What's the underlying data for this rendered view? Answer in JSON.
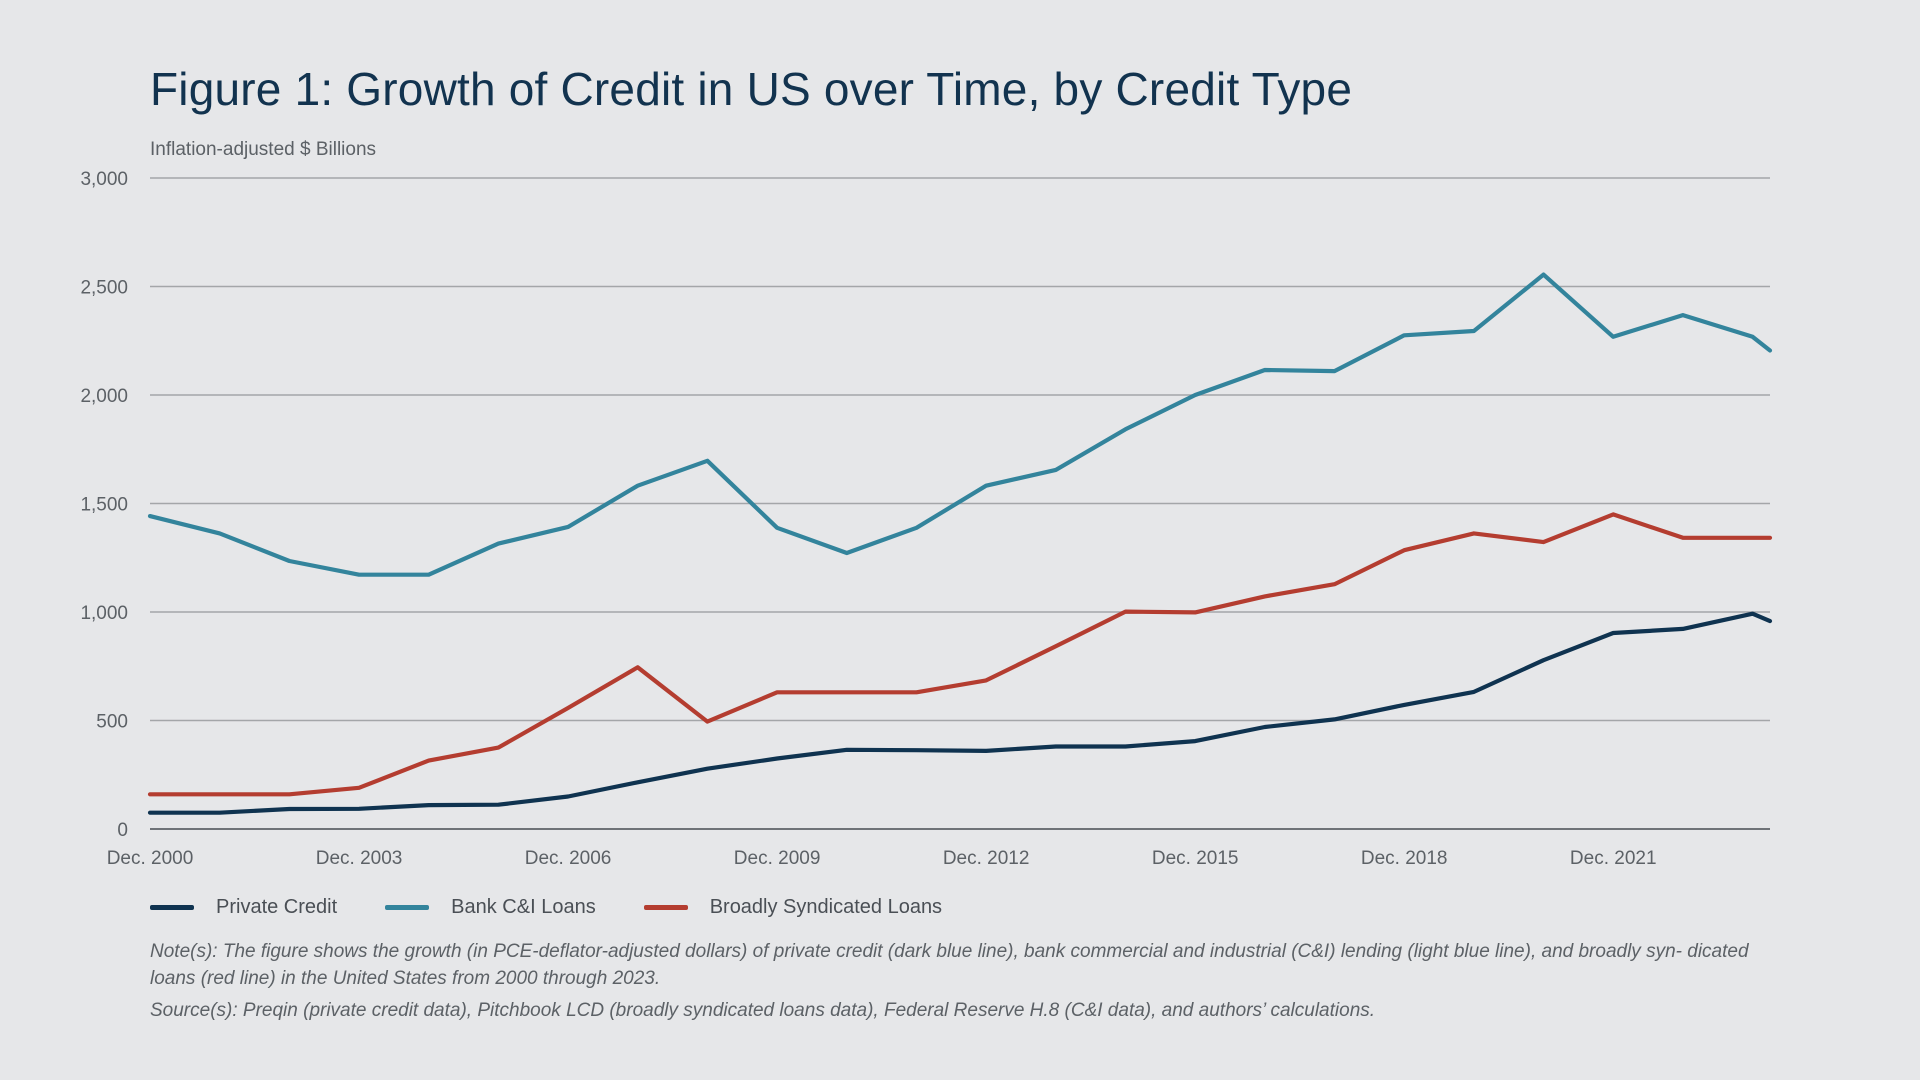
{
  "title": "Figure 1: Growth of Credit in US over Time, by Credit Type",
  "subtitle": "Inflation-adjusted $ Billions",
  "note": "Note(s): The figure shows the growth (in PCE-deflator-adjusted dollars) of private credit (dark blue line), bank commercial and industrial (C&I) lending (light blue line), and broadly syn- dicated loans (red line) in the United States from 2000 through 2023.",
  "source": "Source(s): Preqin (private credit data), Pitchbook LCD (broadly syndicated loans data), Federal Reserve H.8 (C&I data), and authors’ calculations.",
  "colors": {
    "background": "#e6e7e9",
    "grid": "#a4a6a9",
    "axis": "#6f7378",
    "private_credit": "#0f3350",
    "bank_ci": "#33849c",
    "bsl": "#b43d30"
  },
  "chart_data": {
    "type": "line",
    "title": "Figure 1: Growth of Credit in US over Time, by Credit Type",
    "ylabel": "Inflation-adjusted $ Billions",
    "xlabel": "",
    "ylim": [
      0,
      3000
    ],
    "xlim": [
      2000.92,
      2024.17
    ],
    "y_ticks": [
      0,
      500,
      1000,
      1500,
      2000,
      2500,
      3000
    ],
    "y_tick_labels": [
      "0",
      "500",
      "1,000",
      "1,500",
      "2,000",
      "2,500",
      "3,000"
    ],
    "x_ticks": [
      2000.92,
      2003.92,
      2006.92,
      2009.92,
      2012.92,
      2015.92,
      2018.92,
      2021.92
    ],
    "x_tick_labels": [
      "Dec. 2000",
      "Dec. 2003",
      "Dec. 2006",
      "Dec. 2009",
      "Dec. 2012",
      "Dec. 2015",
      "Dec. 2018",
      "Dec. 2021"
    ],
    "grid": true,
    "legend": "bottom",
    "series": [
      {
        "name": "Private Credit",
        "color": "#0f3350",
        "x": [
          2000.92,
          2001.92,
          2002.92,
          2003.92,
          2004.92,
          2005.92,
          2006.92,
          2007.92,
          2008.92,
          2009.92,
          2010.92,
          2011.92,
          2012.92,
          2013.92,
          2014.92,
          2015.92,
          2016.92,
          2017.92,
          2018.92,
          2019.92,
          2020.92,
          2021.92,
          2022.92,
          2023.92,
          2024.17
        ],
        "y": [
          75,
          75,
          92,
          93,
          110,
          112,
          150,
          215,
          278,
          325,
          365,
          363,
          360,
          380,
          380,
          405,
          470,
          505,
          572,
          632,
          778,
          903,
          922,
          992,
          958
        ]
      },
      {
        "name": "Bank C&I Loans",
        "color": "#33849c",
        "x": [
          2000.92,
          2001.92,
          2002.92,
          2003.92,
          2004.92,
          2005.92,
          2006.92,
          2007.92,
          2008.92,
          2009.92,
          2010.92,
          2011.92,
          2012.92,
          2013.92,
          2014.92,
          2015.92,
          2016.92,
          2017.92,
          2018.92,
          2019.92,
          2020.92,
          2021.92,
          2022.92,
          2023.92,
          2024.17
        ],
        "y": [
          1442,
          1362,
          1235,
          1172,
          1172,
          1315,
          1392,
          1582,
          1697,
          1388,
          1272,
          1388,
          1582,
          1655,
          1842,
          2000,
          2115,
          2110,
          2275,
          2295,
          2555,
          2268,
          2368,
          2268,
          2205
        ]
      },
      {
        "name": "Broadly Syndicated Loans",
        "color": "#b43d30",
        "x": [
          2000.92,
          2001.92,
          2002.92,
          2003.92,
          2004.92,
          2005.92,
          2006.92,
          2007.92,
          2008.92,
          2009.92,
          2010.92,
          2011.92,
          2012.92,
          2013.92,
          2014.92,
          2015.92,
          2016.92,
          2017.92,
          2018.92,
          2019.92,
          2020.92,
          2021.92,
          2022.92,
          2023.92,
          2024.17
        ],
        "y": [
          160,
          160,
          160,
          190,
          315,
          375,
          558,
          745,
          495,
          630,
          630,
          630,
          685,
          842,
          1002,
          998,
          1072,
          1128,
          1285,
          1362,
          1322,
          1450,
          1342,
          1342,
          1342
        ]
      }
    ]
  }
}
